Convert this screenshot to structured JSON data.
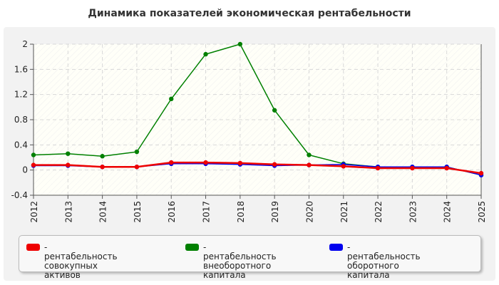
{
  "chart_data": {
    "type": "line",
    "title": "Динамика показателей экономическая рентабельности",
    "x": [
      "2012",
      "2013",
      "2014",
      "2015",
      "2016",
      "2017",
      "2018",
      "2019",
      "2020",
      "2021",
      "2022",
      "2023",
      "2024",
      "2025"
    ],
    "ylim": [
      -0.4,
      2
    ],
    "yticks": [
      "2",
      "1.6",
      "1.2",
      "0.8",
      "0.4",
      "0",
      "-0.4"
    ],
    "grid": true,
    "legend_position": "bottom",
    "series": [
      {
        "name": "- рентабельность совокупных активов",
        "legend_lines": [
          "- рентабельность совокупных",
          "активов"
        ],
        "color": "#ee0000",
        "values": [
          0.08,
          0.08,
          0.05,
          0.05,
          0.12,
          0.12,
          0.11,
          0.09,
          0.08,
          0.06,
          0.03,
          0.03,
          0.03,
          -0.05
        ]
      },
      {
        "name": "- рентабельность внеоборотного капитала",
        "legend_lines": [
          "- рентабельность",
          "внеоборотного капитала"
        ],
        "color": "#008000",
        "values": [
          0.24,
          0.26,
          0.22,
          0.29,
          1.13,
          1.84,
          2.0,
          0.95,
          0.24,
          0.1,
          0.05,
          0.05,
          0.05,
          -0.08
        ]
      },
      {
        "name": "- рентабельность оборотного капитала",
        "legend_lines": [
          "- рентабельность оборотного",
          "капитала"
        ],
        "color": "#0000ee",
        "values": [
          0.07,
          0.07,
          0.05,
          0.05,
          0.1,
          0.1,
          0.09,
          0.07,
          0.08,
          0.09,
          0.05,
          0.05,
          0.05,
          -0.08
        ]
      }
    ]
  }
}
